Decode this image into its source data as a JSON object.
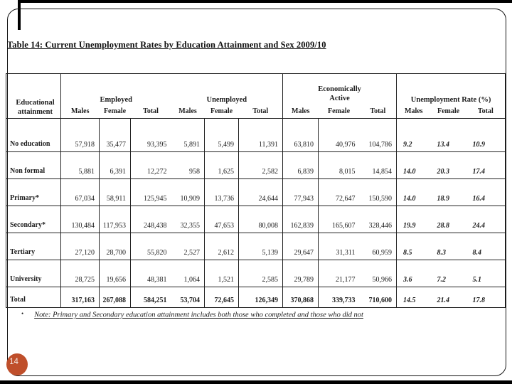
{
  "slide": {
    "page_number": "14",
    "badge_color": "#bf4f2b"
  },
  "title": "Table 14: Current Unemployment Rates by Education Attainment and Sex 2009/10",
  "note": {
    "bullet": "•",
    "text": "Note: Primary and Secondary education attainment includes both those who completed and those who did not"
  },
  "table": {
    "row_header": "Educational attainment",
    "groups": [
      {
        "label": "Employed",
        "cols": [
          "Males",
          "Female",
          "Total"
        ]
      },
      {
        "label": "Unemployed",
        "cols": [
          "Males",
          "Female",
          "Total"
        ]
      },
      {
        "label": "Economically Active",
        "cols": [
          "Males",
          "Female",
          "Total"
        ]
      },
      {
        "label": "Unemployment Rate (%)",
        "cols": [
          "Males",
          "Female",
          "Total"
        ]
      }
    ],
    "rows": [
      {
        "label": "No education",
        "values": [
          "57,918",
          "35,477",
          "93,395",
          "5,891",
          "5,499",
          "11,391",
          "63,810",
          "40,976",
          "104,786",
          "9.2",
          "13.4",
          "10.9"
        ]
      },
      {
        "label": "Non formal",
        "values": [
          "5,881",
          "6,391",
          "12,272",
          "958",
          "1,625",
          "2,582",
          "6,839",
          "8,015",
          "14,854",
          "14.0",
          "20.3",
          "17.4"
        ]
      },
      {
        "label": "Primary*",
        "values": [
          "67,034",
          "58,911",
          "125,945",
          "10,909",
          "13,736",
          "24,644",
          "77,943",
          "72,647",
          "150,590",
          "14.0",
          "18.9",
          "16.4"
        ]
      },
      {
        "label": "Secondary*",
        "values": [
          "130,484",
          "117,953",
          "248,438",
          "32,355",
          "47,653",
          "80,008",
          "162,839",
          "165,607",
          "328,446",
          "19.9",
          "28.8",
          "24.4"
        ]
      },
      {
        "label": "Tertiary",
        "values": [
          "27,120",
          "28,700",
          "55,820",
          "2,527",
          "2,612",
          "5,139",
          "29,647",
          "31,311",
          "60,959",
          "8.5",
          "8.3",
          "8.4"
        ]
      },
      {
        "label": "University",
        "values": [
          "28,725",
          "19,656",
          "48,381",
          "1,064",
          "1,521",
          "2,585",
          "29,789",
          "21,177",
          "50,966",
          "3.6",
          "7.2",
          "5.1"
        ]
      },
      {
        "label": "Total",
        "values": [
          "317,163",
          "267,088",
          "584,251",
          "53,704",
          "72,645",
          "126,349",
          "370,868",
          "339,733",
          "710,600",
          "14.5",
          "21.4",
          "17.8"
        ]
      }
    ]
  }
}
